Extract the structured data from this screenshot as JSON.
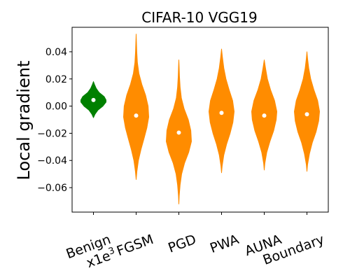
{
  "chart_data": {
    "type": "violin",
    "title": "CIFAR-10 VGG19",
    "xlabel": "",
    "ylabel": "Local gradient",
    "ylim": [
      -0.078,
      0.058
    ],
    "ytick_values": [
      0.04,
      0.02,
      0.0,
      -0.02,
      -0.04,
      -0.06
    ],
    "ytick_labels": [
      "0.04",
      "0.02",
      "0.00",
      "−0.02",
      "−0.04",
      "−0.06"
    ],
    "categories": [
      "Benign\nx1e3",
      "FGSM",
      "PGD",
      "PWA",
      "AUNA",
      "Boundary"
    ],
    "x_note_superscript": "3",
    "colors": {
      "benign": "#008000",
      "adversarial": "#ff8c00",
      "median_marker": "#ffffff"
    },
    "series": [
      {
        "category": "Benign x1e3",
        "color": "#008000",
        "median": 0.0045,
        "min": -0.0085,
        "max": 0.018,
        "density": [
          [
            -0.0085,
            0.0
          ],
          [
            -0.006,
            0.12
          ],
          [
            -0.003,
            0.35
          ],
          [
            0.0,
            0.75
          ],
          [
            0.003,
            1.0
          ],
          [
            0.0045,
            1.0
          ],
          [
            0.007,
            0.85
          ],
          [
            0.01,
            0.45
          ],
          [
            0.013,
            0.22
          ],
          [
            0.016,
            0.08
          ],
          [
            0.018,
            0.0
          ]
        ]
      },
      {
        "category": "FGSM",
        "color": "#ff8c00",
        "median": -0.007,
        "min": -0.054,
        "max": 0.053,
        "density": [
          [
            -0.054,
            0.0
          ],
          [
            -0.048,
            0.06
          ],
          [
            -0.04,
            0.18
          ],
          [
            -0.032,
            0.38
          ],
          [
            -0.024,
            0.62
          ],
          [
            -0.016,
            0.85
          ],
          [
            -0.008,
            1.0
          ],
          [
            0.0,
            0.95
          ],
          [
            0.008,
            0.75
          ],
          [
            0.016,
            0.45
          ],
          [
            0.024,
            0.22
          ],
          [
            0.032,
            0.1
          ],
          [
            0.04,
            0.05
          ],
          [
            0.048,
            0.02
          ],
          [
            0.053,
            0.0
          ]
        ]
      },
      {
        "category": "PGD",
        "color": "#ff8c00",
        "median": -0.0195,
        "min": -0.072,
        "max": 0.034,
        "density": [
          [
            -0.072,
            0.0
          ],
          [
            -0.066,
            0.03
          ],
          [
            -0.058,
            0.1
          ],
          [
            -0.05,
            0.22
          ],
          [
            -0.042,
            0.45
          ],
          [
            -0.034,
            0.78
          ],
          [
            -0.026,
            1.0
          ],
          [
            -0.018,
            0.95
          ],
          [
            -0.01,
            0.75
          ],
          [
            -0.002,
            0.42
          ],
          [
            0.006,
            0.2
          ],
          [
            0.014,
            0.1
          ],
          [
            0.022,
            0.05
          ],
          [
            0.03,
            0.02
          ],
          [
            0.034,
            0.0
          ]
        ]
      },
      {
        "category": "PWA",
        "color": "#ff8c00",
        "median": -0.005,
        "min": -0.049,
        "max": 0.042,
        "density": [
          [
            -0.049,
            0.0
          ],
          [
            -0.044,
            0.05
          ],
          [
            -0.036,
            0.18
          ],
          [
            -0.028,
            0.4
          ],
          [
            -0.02,
            0.68
          ],
          [
            -0.012,
            0.9
          ],
          [
            -0.004,
            1.0
          ],
          [
            0.004,
            0.88
          ],
          [
            0.012,
            0.6
          ],
          [
            0.02,
            0.35
          ],
          [
            0.028,
            0.18
          ],
          [
            0.036,
            0.07
          ],
          [
            0.042,
            0.0
          ]
        ]
      },
      {
        "category": "AUNA",
        "color": "#ff8c00",
        "median": -0.007,
        "min": -0.047,
        "max": 0.034,
        "density": [
          [
            -0.047,
            0.0
          ],
          [
            -0.042,
            0.05
          ],
          [
            -0.034,
            0.2
          ],
          [
            -0.026,
            0.45
          ],
          [
            -0.018,
            0.75
          ],
          [
            -0.01,
            0.95
          ],
          [
            -0.004,
            1.0
          ],
          [
            0.004,
            0.82
          ],
          [
            0.012,
            0.5
          ],
          [
            0.02,
            0.25
          ],
          [
            0.028,
            0.1
          ],
          [
            0.034,
            0.0
          ]
        ]
      },
      {
        "category": "Boundary",
        "color": "#ff8c00",
        "median": -0.006,
        "min": -0.048,
        "max": 0.04,
        "density": [
          [
            -0.048,
            0.0
          ],
          [
            -0.043,
            0.05
          ],
          [
            -0.035,
            0.2
          ],
          [
            -0.027,
            0.42
          ],
          [
            -0.019,
            0.72
          ],
          [
            -0.011,
            0.93
          ],
          [
            -0.004,
            1.0
          ],
          [
            0.004,
            0.85
          ],
          [
            0.012,
            0.55
          ],
          [
            0.02,
            0.3
          ],
          [
            0.028,
            0.14
          ],
          [
            0.035,
            0.05
          ],
          [
            0.04,
            0.0
          ]
        ]
      }
    ],
    "grid": false,
    "legend": "none"
  }
}
